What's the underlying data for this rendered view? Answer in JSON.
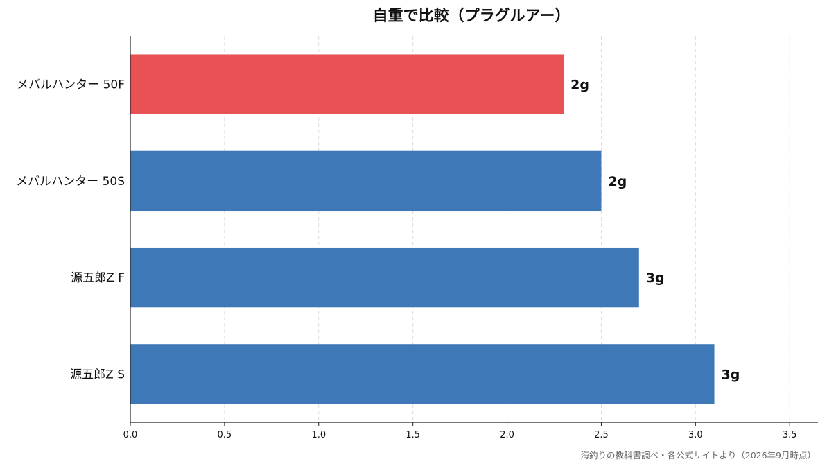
{
  "chart_data": {
    "type": "bar",
    "orientation": "horizontal",
    "title": "自重で比較（プラグルアー）",
    "categories": [
      "メバルハンター 50F",
      "メバルハンター 50S",
      "源五郎Z F",
      "源五郎Z S"
    ],
    "values": [
      2.3,
      2.5,
      2.7,
      3.1
    ],
    "data_labels": [
      "2g",
      "2g",
      "3g",
      "3g"
    ],
    "bar_colors": [
      "#e85254",
      "#3f78b6",
      "#3f78b6",
      "#3f78b6"
    ],
    "xlim": [
      0,
      3.65
    ],
    "xticks": [
      0.0,
      0.5,
      1.0,
      1.5,
      2.0,
      2.5,
      3.0,
      3.5
    ],
    "xtick_labels": [
      "0.0",
      "0.5",
      "1.0",
      "1.5",
      "2.0",
      "2.5",
      "3.0",
      "3.5"
    ],
    "xlabel": "",
    "ylabel": "",
    "grid": "x-dashed",
    "legend": "none"
  },
  "footer": {
    "source": "海釣りの教科書調べ・各公式サイトより（2026年9月時点）"
  }
}
